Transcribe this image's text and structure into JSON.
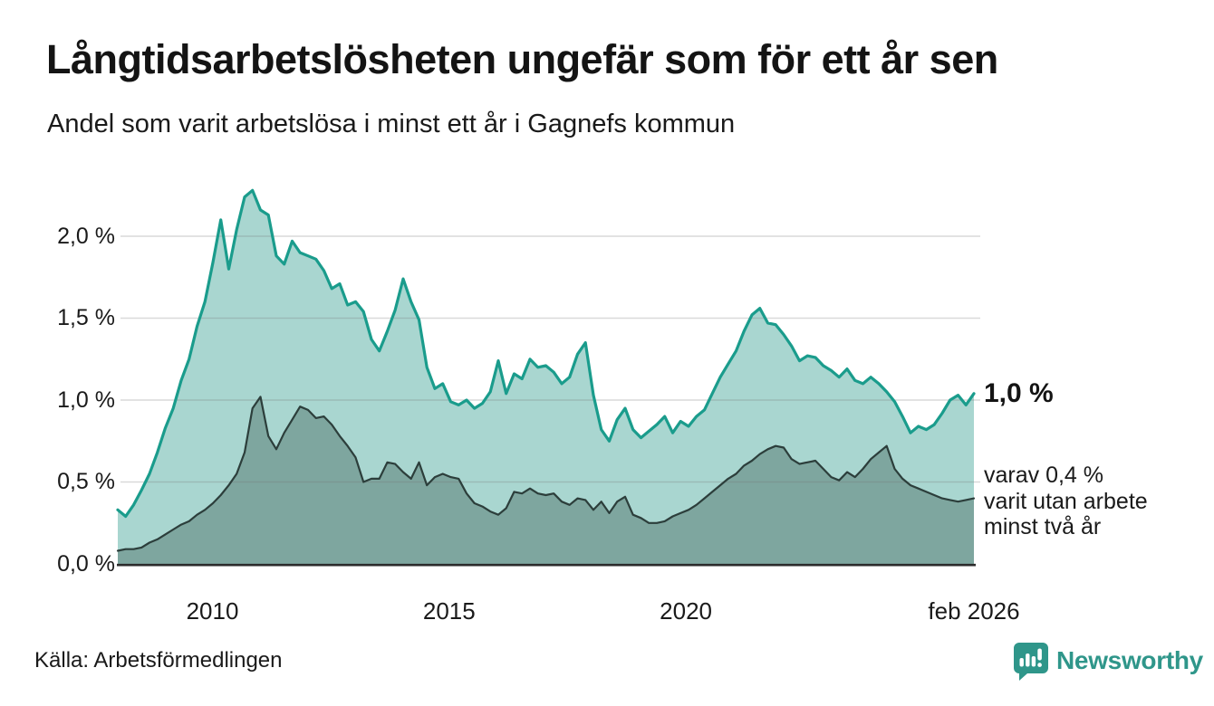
{
  "header": {
    "title": "Långtidsarbetslösheten ungefär som för ett år sen",
    "subtitle": "Andel som varit arbetslösa i minst ett år i Gagnefs kommun"
  },
  "annotations": {
    "end_value_label": "1,0 %",
    "secondary_lines": [
      "varav 0,4 %",
      "varit utan arbete",
      "minst två år"
    ]
  },
  "footer": {
    "source": "Källa: Arbetsförmedlingen",
    "brand": "Newsworthy"
  },
  "colors": {
    "accent_teal": "#1a9c8c",
    "fill_light": "#a9d6d0",
    "fill_dark": "#7ea69f",
    "dark_line": "#2c3e3b",
    "grid": "#dedede",
    "axis": "#2b2b2b",
    "brand_teal": "#2f968a",
    "text": "#1a1a1a"
  },
  "chart_data": {
    "type": "area",
    "title": "Andel som varit arbetslösa i minst ett år i Gagnefs kommun",
    "unit": "%",
    "x_start": 2008.0,
    "x_step_years": 0.167435,
    "xlim": [
      2008.0,
      2026.083
    ],
    "ylim": [
      0,
      2.4
    ],
    "grid": true,
    "legend_position": "none",
    "x_ticks": [
      {
        "value": 2010,
        "label": "2010"
      },
      {
        "value": 2015,
        "label": "2015"
      },
      {
        "value": 2020,
        "label": "2020"
      },
      {
        "value": 2026.083,
        "label": "feb 2026"
      }
    ],
    "y_ticks": [
      {
        "value": 0.0,
        "label": "0,0 %"
      },
      {
        "value": 0.5,
        "label": "0,5 %"
      },
      {
        "value": 1.0,
        "label": "1,0 %"
      },
      {
        "value": 1.5,
        "label": "1,5 %"
      },
      {
        "value": 2.0,
        "label": "2,0 %"
      }
    ],
    "series": [
      {
        "name": "Andel som varit arbetslösa i minst ett år",
        "end_value_pct": 1.0,
        "line_color": "#1a9c8c",
        "fill_color": "#a9d6d0",
        "line_width": 3.2,
        "values": [
          0.33,
          0.29,
          0.36,
          0.45,
          0.55,
          0.68,
          0.83,
          0.95,
          1.12,
          1.25,
          1.45,
          1.6,
          1.84,
          2.1,
          1.8,
          2.04,
          2.24,
          2.28,
          2.16,
          2.13,
          1.88,
          1.83,
          1.97,
          1.9,
          1.88,
          1.86,
          1.79,
          1.68,
          1.71,
          1.58,
          1.6,
          1.54,
          1.37,
          1.3,
          1.42,
          1.55,
          1.74,
          1.6,
          1.49,
          1.2,
          1.07,
          1.1,
          0.99,
          0.97,
          1.0,
          0.95,
          0.98,
          1.05,
          1.24,
          1.04,
          1.16,
          1.13,
          1.25,
          1.2,
          1.21,
          1.17,
          1.1,
          1.14,
          1.28,
          1.35,
          1.03,
          0.82,
          0.75,
          0.88,
          0.95,
          0.82,
          0.77,
          0.81,
          0.85,
          0.9,
          0.8,
          0.87,
          0.84,
          0.9,
          0.94,
          1.04,
          1.14,
          1.22,
          1.3,
          1.42,
          1.52,
          1.56,
          1.47,
          1.46,
          1.4,
          1.33,
          1.24,
          1.27,
          1.26,
          1.21,
          1.18,
          1.14,
          1.19,
          1.12,
          1.1,
          1.14,
          1.1,
          1.05,
          0.99,
          0.9,
          0.8,
          0.84,
          0.82,
          0.85,
          0.92,
          1.0,
          1.03,
          0.97,
          1.04
        ]
      },
      {
        "name": "varav utan arbete minst två år",
        "end_value_pct": 0.4,
        "line_color": "#2c3e3b",
        "fill_color": "#7ea69f",
        "line_width": 2.2,
        "values": [
          0.08,
          0.09,
          0.09,
          0.1,
          0.13,
          0.15,
          0.18,
          0.21,
          0.24,
          0.26,
          0.3,
          0.33,
          0.37,
          0.42,
          0.48,
          0.55,
          0.68,
          0.95,
          1.02,
          0.78,
          0.7,
          0.8,
          0.88,
          0.96,
          0.94,
          0.89,
          0.9,
          0.85,
          0.78,
          0.72,
          0.65,
          0.5,
          0.52,
          0.52,
          0.62,
          0.61,
          0.56,
          0.52,
          0.62,
          0.48,
          0.53,
          0.55,
          0.53,
          0.52,
          0.43,
          0.37,
          0.35,
          0.32,
          0.3,
          0.34,
          0.44,
          0.43,
          0.46,
          0.43,
          0.42,
          0.43,
          0.38,
          0.36,
          0.4,
          0.39,
          0.33,
          0.38,
          0.31,
          0.38,
          0.41,
          0.3,
          0.28,
          0.25,
          0.25,
          0.26,
          0.29,
          0.31,
          0.33,
          0.36,
          0.4,
          0.44,
          0.48,
          0.52,
          0.55,
          0.6,
          0.63,
          0.67,
          0.7,
          0.72,
          0.71,
          0.64,
          0.61,
          0.62,
          0.63,
          0.58,
          0.53,
          0.51,
          0.56,
          0.53,
          0.58,
          0.64,
          0.68,
          0.72,
          0.58,
          0.52,
          0.48,
          0.46,
          0.44,
          0.42,
          0.4,
          0.39,
          0.38,
          0.39,
          0.4
        ]
      }
    ]
  }
}
